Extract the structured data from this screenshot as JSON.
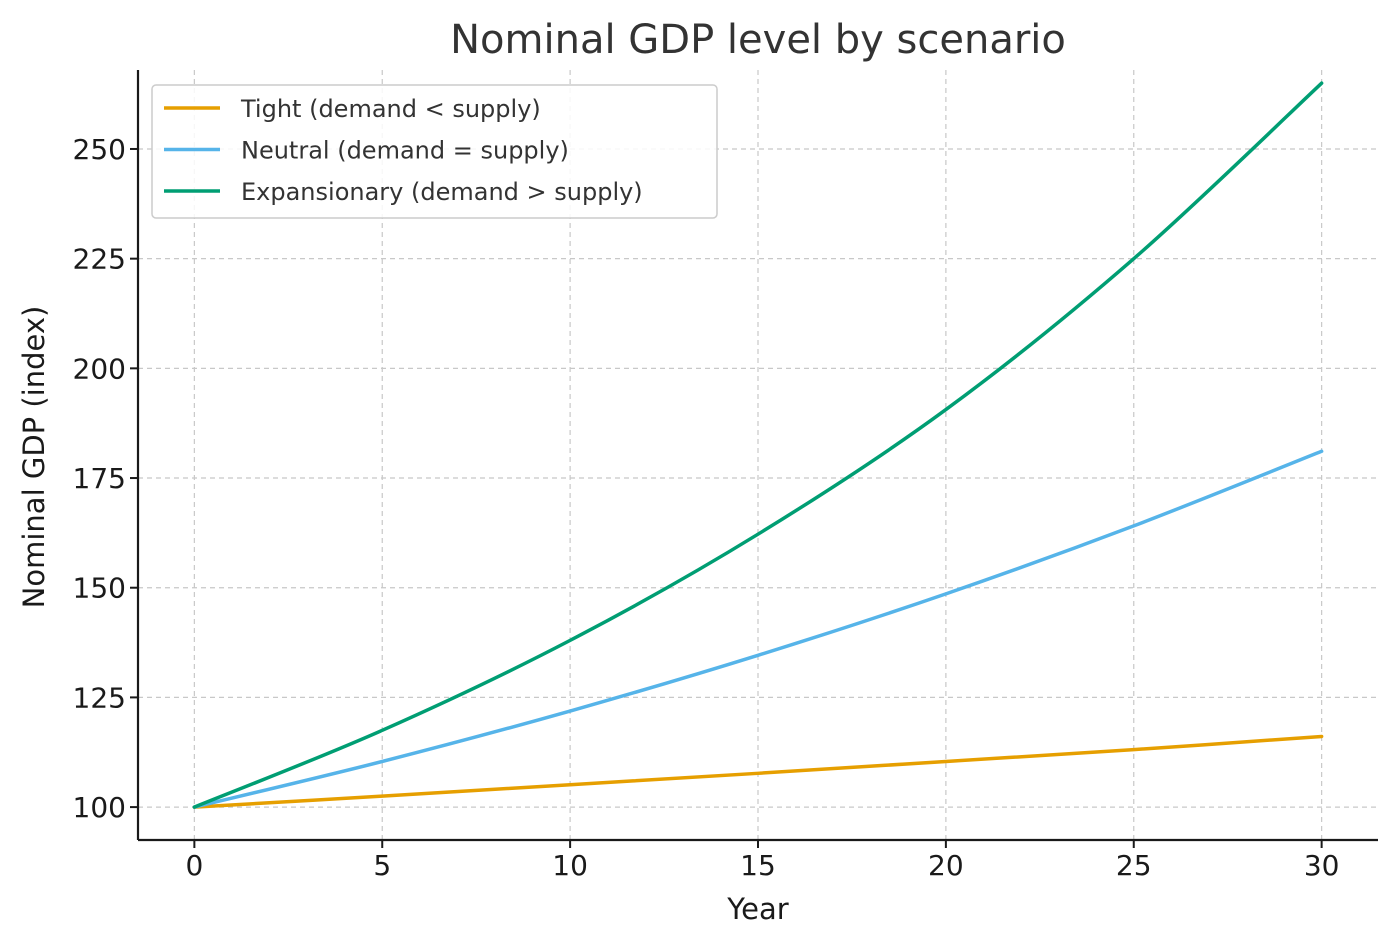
{
  "chart_data": {
    "type": "line",
    "title": "Nominal GDP level by scenario",
    "xlabel": "Year",
    "ylabel": "Nominal GDP (index)",
    "xlim": [
      -1.5,
      31.5
    ],
    "ylim": [
      92.5,
      268
    ],
    "xticks": [
      0,
      5,
      10,
      15,
      20,
      25,
      30
    ],
    "yticks": [
      100,
      125,
      150,
      175,
      200,
      225,
      250
    ],
    "grid": true,
    "legend_position": "top-left",
    "x": [
      0,
      5,
      10,
      15,
      20,
      25,
      30
    ],
    "series": [
      {
        "name": "Tight (demand < supply)",
        "color": "#E69F00",
        "values": [
          100,
          102.5,
          105.1,
          107.7,
          110.4,
          113.1,
          116.1
        ]
      },
      {
        "name": "Neutral (demand = supply)",
        "color": "#56B4E9",
        "values": [
          100,
          110.4,
          121.9,
          134.6,
          148.6,
          164.1,
          181.1
        ]
      },
      {
        "name": "Expansionary (demand > supply)",
        "color": "#009E73",
        "values": [
          100,
          117.5,
          138.0,
          162.2,
          190.6,
          225.0,
          265.0
        ]
      }
    ]
  }
}
